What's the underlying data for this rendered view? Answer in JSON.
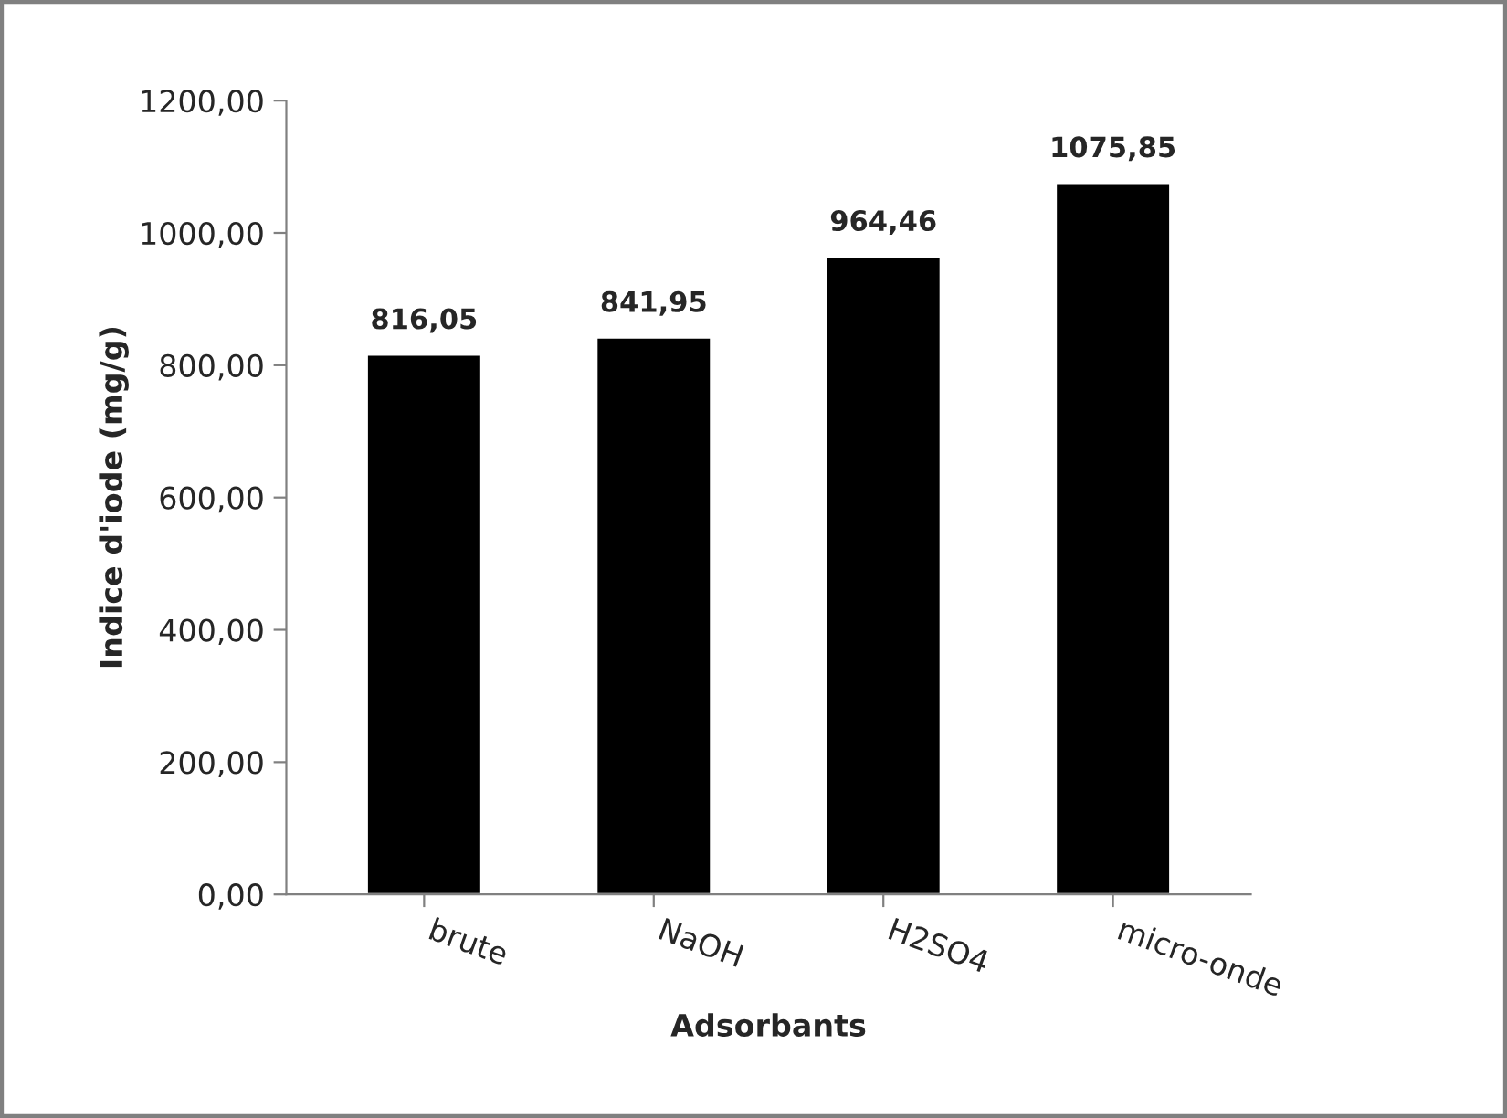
{
  "chart_data": {
    "type": "bar",
    "xlabel": "Adsorbants",
    "ylabel": "Indice d'iode (mg/g)",
    "categories": [
      "brute",
      "NaOH",
      "H2SO4",
      "micro-onde"
    ],
    "series": [
      {
        "color": "#000000",
        "values": [
          816.05,
          841.95,
          964.46,
          1075.85
        ],
        "value_labels": [
          "816,05",
          "841,95",
          "964,46",
          "1075,85"
        ]
      }
    ],
    "ylim": [
      0,
      1200
    ],
    "yticks": [
      {
        "value": 0,
        "label": "0,00"
      },
      {
        "value": 200,
        "label": "200,00"
      },
      {
        "value": 400,
        "label": "400,00"
      },
      {
        "value": 600,
        "label": "600,00"
      },
      {
        "value": 800,
        "label": "800,00"
      },
      {
        "value": 1000,
        "label": "1000,00"
      },
      {
        "value": 1200,
        "label": "1200,00"
      }
    ],
    "grid": false
  }
}
